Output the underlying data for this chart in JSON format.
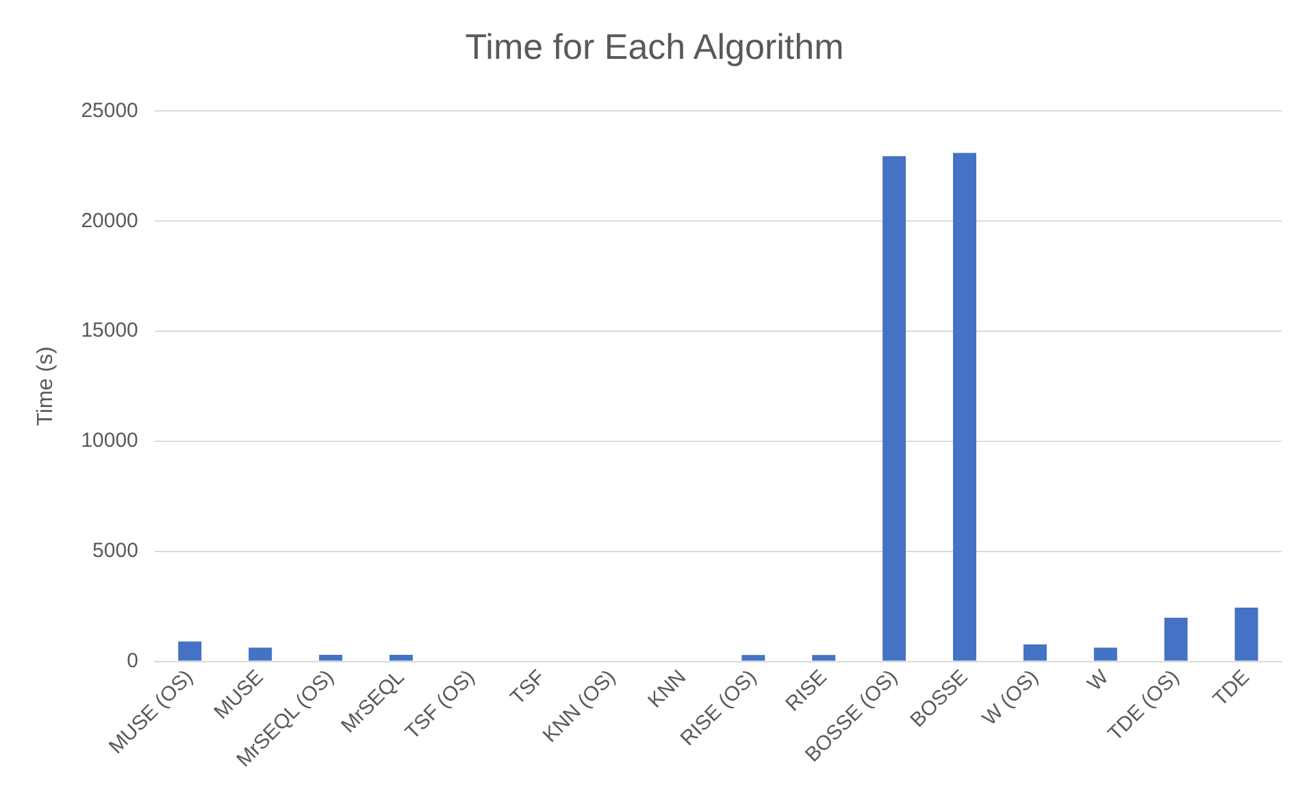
{
  "chart_data": {
    "type": "bar",
    "title": "Time for Each Algorithm",
    "ylabel": "Time (s)",
    "categories": [
      "MUSE (OS)",
      "MUSE",
      "MrSEQL (OS)",
      "MrSEQL",
      "TSF (OS)",
      "TSF",
      "KNN (OS)",
      "KNN",
      "RISE (OS)",
      "RISE",
      "BOSSE (OS)",
      "BOSSE",
      "W (OS)",
      "W",
      "TDE (OS)",
      "TDE"
    ],
    "values": [
      900,
      620,
      300,
      300,
      0,
      0,
      0,
      0,
      290,
      290,
      22950,
      23100,
      770,
      620,
      1980,
      2440
    ],
    "color": "#4472c4",
    "ylim": [
      0,
      25000
    ],
    "yticks": [
      0,
      5000,
      10000,
      15000,
      20000,
      25000
    ],
    "grid": "y"
  }
}
